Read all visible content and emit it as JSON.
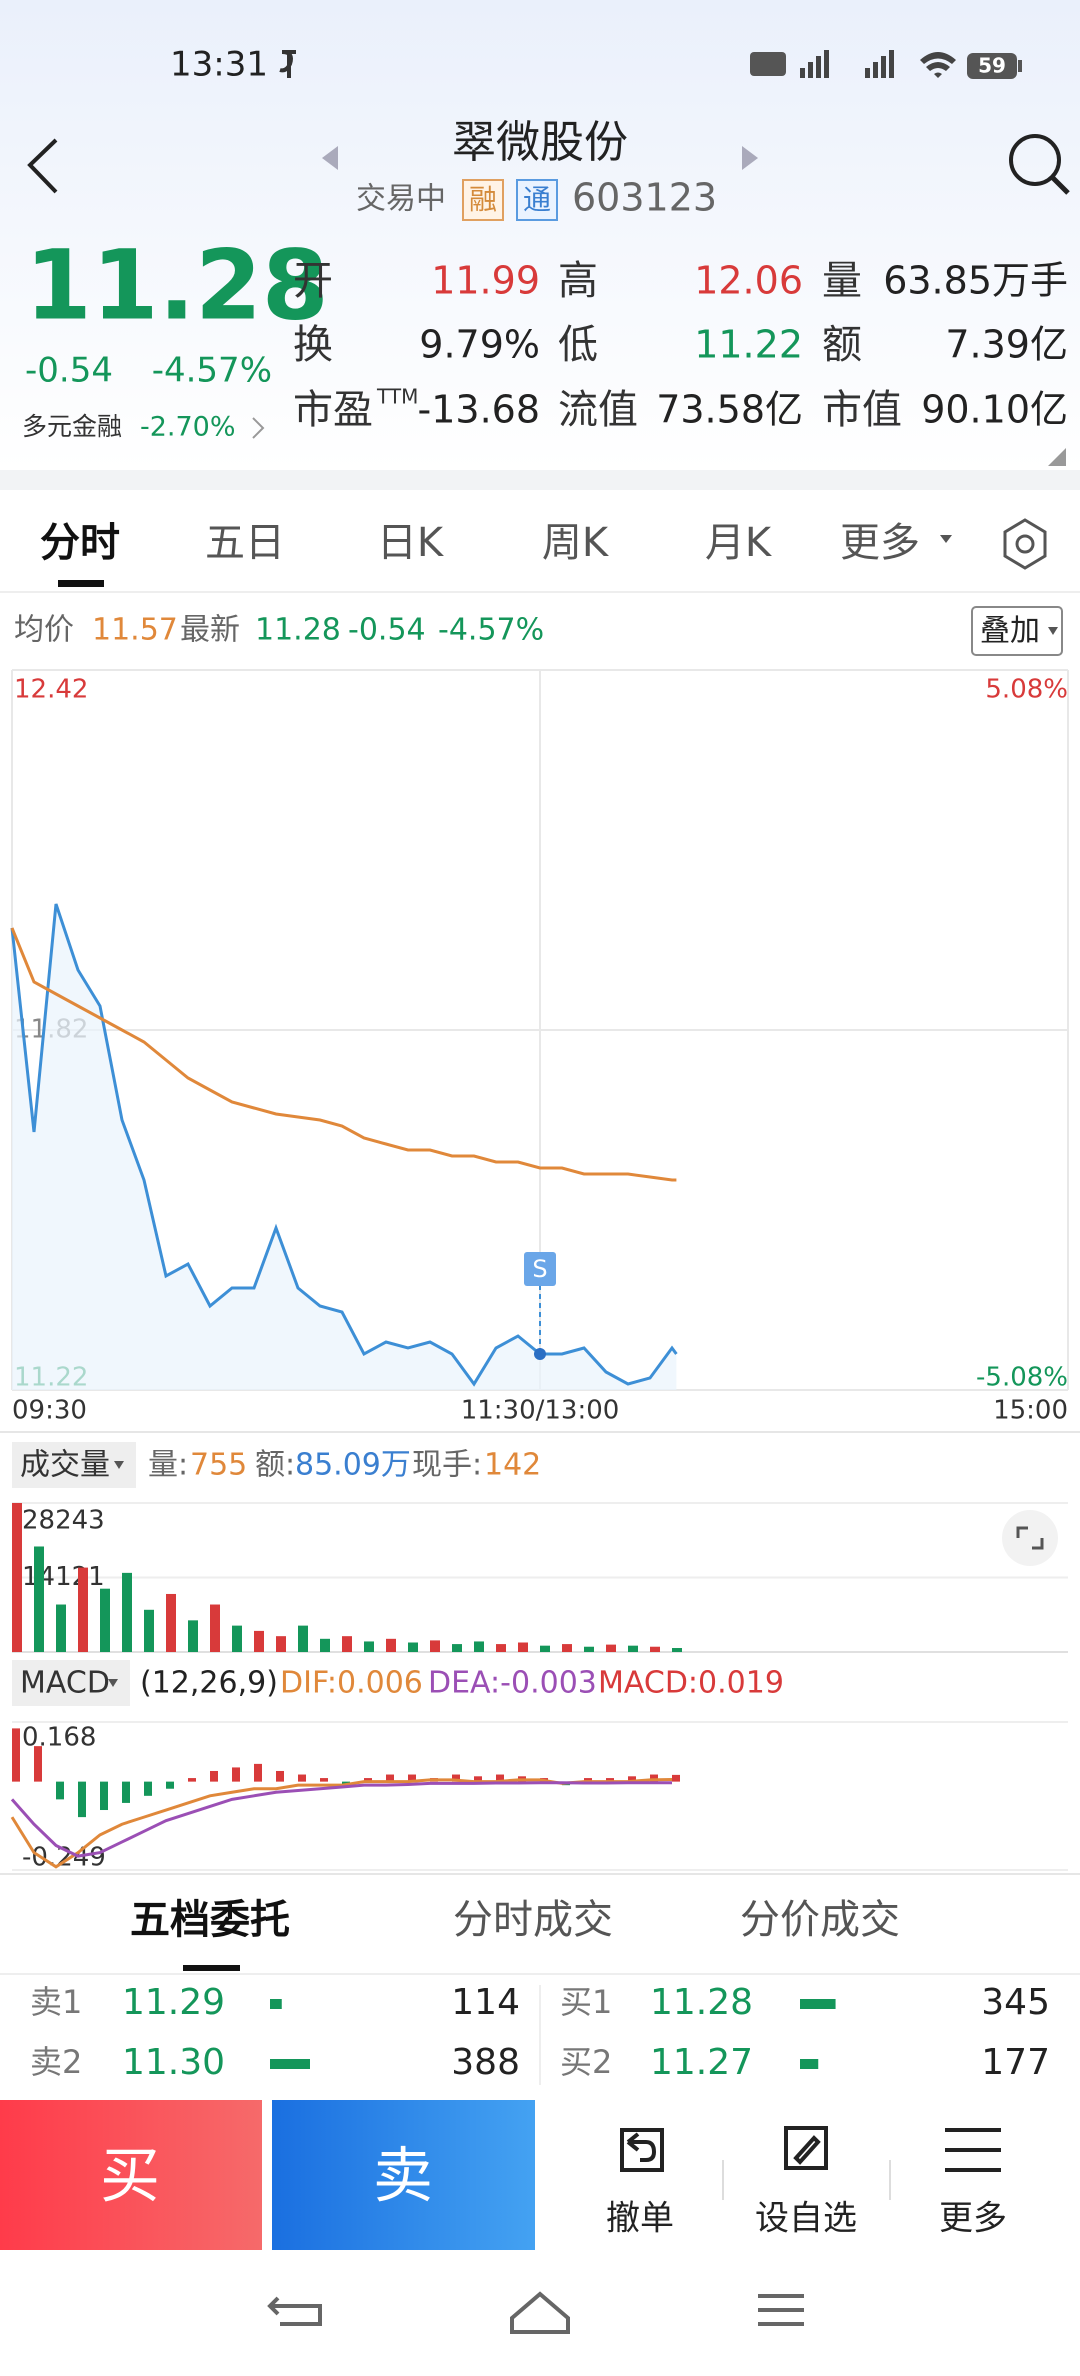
{
  "status_bar": {
    "time": "13:31",
    "battery": "59"
  },
  "header": {
    "title": "翠微股份",
    "status": "交易中",
    "badge1": "融",
    "badge2": "通",
    "code": "603123"
  },
  "quote": {
    "price": "11.28",
    "change": "-0.54",
    "pct": "-4.57%",
    "sector": "多元金融",
    "sector_pct": "-2.70%",
    "stats": [
      {
        "label": "开",
        "value": "11.99",
        "color": "#d83a3a"
      },
      {
        "label": "高",
        "value": "12.06",
        "color": "#d83a3a"
      },
      {
        "label": "量",
        "value": "63.85万手",
        "color": "#222222"
      },
      {
        "label": "换",
        "value": "9.79%",
        "color": "#222222"
      },
      {
        "label": "低",
        "value": "11.22",
        "color": "#14965a"
      },
      {
        "label": "额",
        "value": "7.39亿",
        "color": "#222222"
      },
      {
        "label": "市盈",
        "sup": "TTM",
        "value": "-13.68",
        "color": "#222222"
      },
      {
        "label": "流值",
        "value": "73.58亿",
        "color": "#222222"
      },
      {
        "label": "市值",
        "value": "90.10亿",
        "color": "#222222"
      }
    ]
  },
  "tabs": [
    "分时",
    "五日",
    "日K",
    "周K",
    "月K",
    "更多"
  ],
  "info": {
    "avg_label": "均价",
    "avg": "11.57",
    "latest_label": "最新",
    "latest": "11.28",
    "change": "-0.54",
    "pct": "-4.57%",
    "overlay": "叠加"
  },
  "chart_data": [
    {
      "type": "line",
      "x": [
        0,
        5,
        10,
        15,
        20,
        25,
        30,
        35,
        40,
        45,
        50,
        55,
        60,
        65,
        70,
        75,
        80,
        85,
        90,
        95,
        100,
        105,
        110,
        115,
        120,
        125,
        130,
        135,
        140,
        145,
        150,
        151
      ],
      "series": [
        {
          "color": "#3d8fd6",
          "values": [
            11.99,
            11.65,
            12.03,
            11.92,
            11.86,
            11.67,
            11.57,
            11.41,
            11.43,
            11.36,
            11.39,
            11.39,
            11.49,
            11.39,
            11.36,
            11.35,
            11.28,
            11.3,
            11.29,
            11.3,
            11.28,
            11.23,
            11.29,
            11.31,
            11.28,
            11.28,
            11.29,
            11.25,
            11.23,
            11.24,
            11.29,
            11.28
          ]
        },
        {
          "color": "#e0883a",
          "values": [
            11.99,
            11.9,
            11.88,
            11.86,
            11.84,
            11.82,
            11.8,
            11.77,
            11.74,
            11.72,
            11.7,
            11.69,
            11.68,
            11.675,
            11.67,
            11.66,
            11.64,
            11.63,
            11.62,
            11.62,
            11.61,
            11.61,
            11.6,
            11.6,
            11.59,
            11.59,
            11.58,
            11.58,
            11.58,
            11.575,
            11.57,
            11.57
          ]
        }
      ],
      "xlim": [
        0,
        240
      ],
      "xticks": [
        {
          "value": 0,
          "label": "09:30"
        },
        {
          "value": 120,
          "label": "11:30/13:00"
        },
        {
          "value": 240,
          "label": "15:00"
        }
      ],
      "ylim": [
        11.22,
        12.42
      ],
      "yticks": [
        12.42,
        11.82,
        11.22
      ],
      "y2lim": [
        -5.08,
        5.08
      ],
      "y2ticks": [
        {
          "value": 5.08,
          "label": "5.08%"
        },
        {
          "value": -5.08,
          "label": "-5.08%"
        }
      ],
      "grid": true,
      "annotations": [
        {
          "x": 120,
          "label": "S"
        }
      ]
    },
    {
      "type": "bar",
      "x": [
        0,
        5,
        10,
        15,
        20,
        25,
        30,
        35,
        40,
        45,
        50,
        55,
        60,
        65,
        70,
        75,
        80,
        85,
        90,
        95,
        100,
        105,
        110,
        115,
        120,
        125,
        130,
        135,
        140,
        145,
        150
      ],
      "values": [
        28243,
        20000,
        9000,
        16000,
        12000,
        15000,
        8000,
        11000,
        6000,
        9000,
        5000,
        4000,
        3000,
        5000,
        2500,
        3000,
        2000,
        2500,
        1800,
        2200,
        1500,
        2000,
        1500,
        1800,
        1200,
        1500,
        1000,
        1400,
        1200,
        1000,
        755
      ],
      "colors": [
        "#d83a3a",
        "#14965a",
        "#14965a",
        "#d83a3a",
        "#14965a",
        "#14965a",
        "#14965a",
        "#d83a3a",
        "#14965a",
        "#d83a3a",
        "#14965a",
        "#d83a3a",
        "#d83a3a",
        "#14965a",
        "#14965a",
        "#d83a3a",
        "#14965a",
        "#d83a3a",
        "#14965a",
        "#d83a3a",
        "#14965a",
        "#14965a",
        "#d83a3a",
        "#d83a3a",
        "#14965a",
        "#d83a3a",
        "#14965a",
        "#d83a3a",
        "#14965a",
        "#d83a3a",
        "#14965a"
      ],
      "xlim": [
        0,
        240
      ],
      "ylim": [
        0,
        28243
      ],
      "yticks": [
        28243,
        14121
      ],
      "grid": true
    },
    {
      "type": "macd",
      "x": [
        0,
        5,
        10,
        15,
        20,
        25,
        30,
        35,
        40,
        45,
        50,
        55,
        60,
        65,
        70,
        75,
        80,
        85,
        90,
        95,
        100,
        105,
        110,
        115,
        120,
        125,
        130,
        135,
        140,
        145,
        150
      ],
      "series": [
        {
          "color": "#e0883a",
          "values": [
            -0.1,
            -0.2,
            -0.24,
            -0.2,
            -0.15,
            -0.12,
            -0.1,
            -0.08,
            -0.06,
            -0.04,
            -0.03,
            -0.02,
            -0.02,
            -0.01,
            -0.01,
            -0.01,
            0,
            0,
            0,
            0.005,
            0.005,
            0,
            0,
            0.005,
            0.005,
            -0.005,
            0,
            0,
            0,
            0.005,
            0.006
          ]
        },
        {
          "color": "#9b4fb5",
          "values": [
            -0.05,
            -0.12,
            -0.18,
            -0.21,
            -0.2,
            -0.17,
            -0.14,
            -0.11,
            -0.09,
            -0.07,
            -0.05,
            -0.04,
            -0.03,
            -0.025,
            -0.02,
            -0.015,
            -0.01,
            -0.01,
            -0.008,
            -0.005,
            -0.005,
            -0.005,
            -0.004,
            -0.004,
            -0.003,
            -0.003,
            -0.004,
            -0.004,
            -0.003,
            -0.003,
            -0.003
          ]
        }
      ],
      "bars": [
        0.15,
        0.1,
        -0.05,
        -0.1,
        -0.08,
        -0.06,
        -0.04,
        -0.02,
        0.01,
        0.03,
        0.04,
        0.05,
        0.03,
        0.02,
        0.01,
        -0.01,
        0.01,
        0.02,
        0.02,
        0.01,
        0.02,
        0.015,
        0.02,
        0.015,
        0.01,
        -0.01,
        0.01,
        0.01,
        0.015,
        0.02,
        0.019
      ],
      "up_color": "#d83a3a",
      "down_color": "#14965a",
      "xlim": [
        0,
        240
      ],
      "ylim": [
        -0.249,
        0.168
      ],
      "yticks": [
        0.168,
        -0.249
      ],
      "grid": true
    }
  ],
  "volume_header": {
    "name": "成交量",
    "vol_label": "量:",
    "vol": "755",
    "amt_label": "额:",
    "amt": "85.09万",
    "hand_label": "现手:",
    "hand": "142"
  },
  "macd_header": {
    "name": "MACD",
    "params": "(12,26,9)",
    "dif": "DIF:0.006",
    "dea": "DEA:-0.003",
    "macd": "MACD:0.019"
  },
  "order_tabs": [
    "五档委托",
    "分时成交",
    "分价成交"
  ],
  "order_book": {
    "sell": [
      {
        "label": "卖1",
        "price": "11.29",
        "qty": 114
      },
      {
        "label": "卖2",
        "price": "11.30",
        "qty": 388
      }
    ],
    "buy": [
      {
        "label": "买1",
        "price": "11.28",
        "qty": 345
      },
      {
        "label": "买2",
        "price": "11.27",
        "qty": 177
      }
    ]
  },
  "actions": {
    "buy": "买",
    "sell": "卖",
    "cancel": "撤单",
    "watch": "设自选",
    "more": "更多"
  }
}
